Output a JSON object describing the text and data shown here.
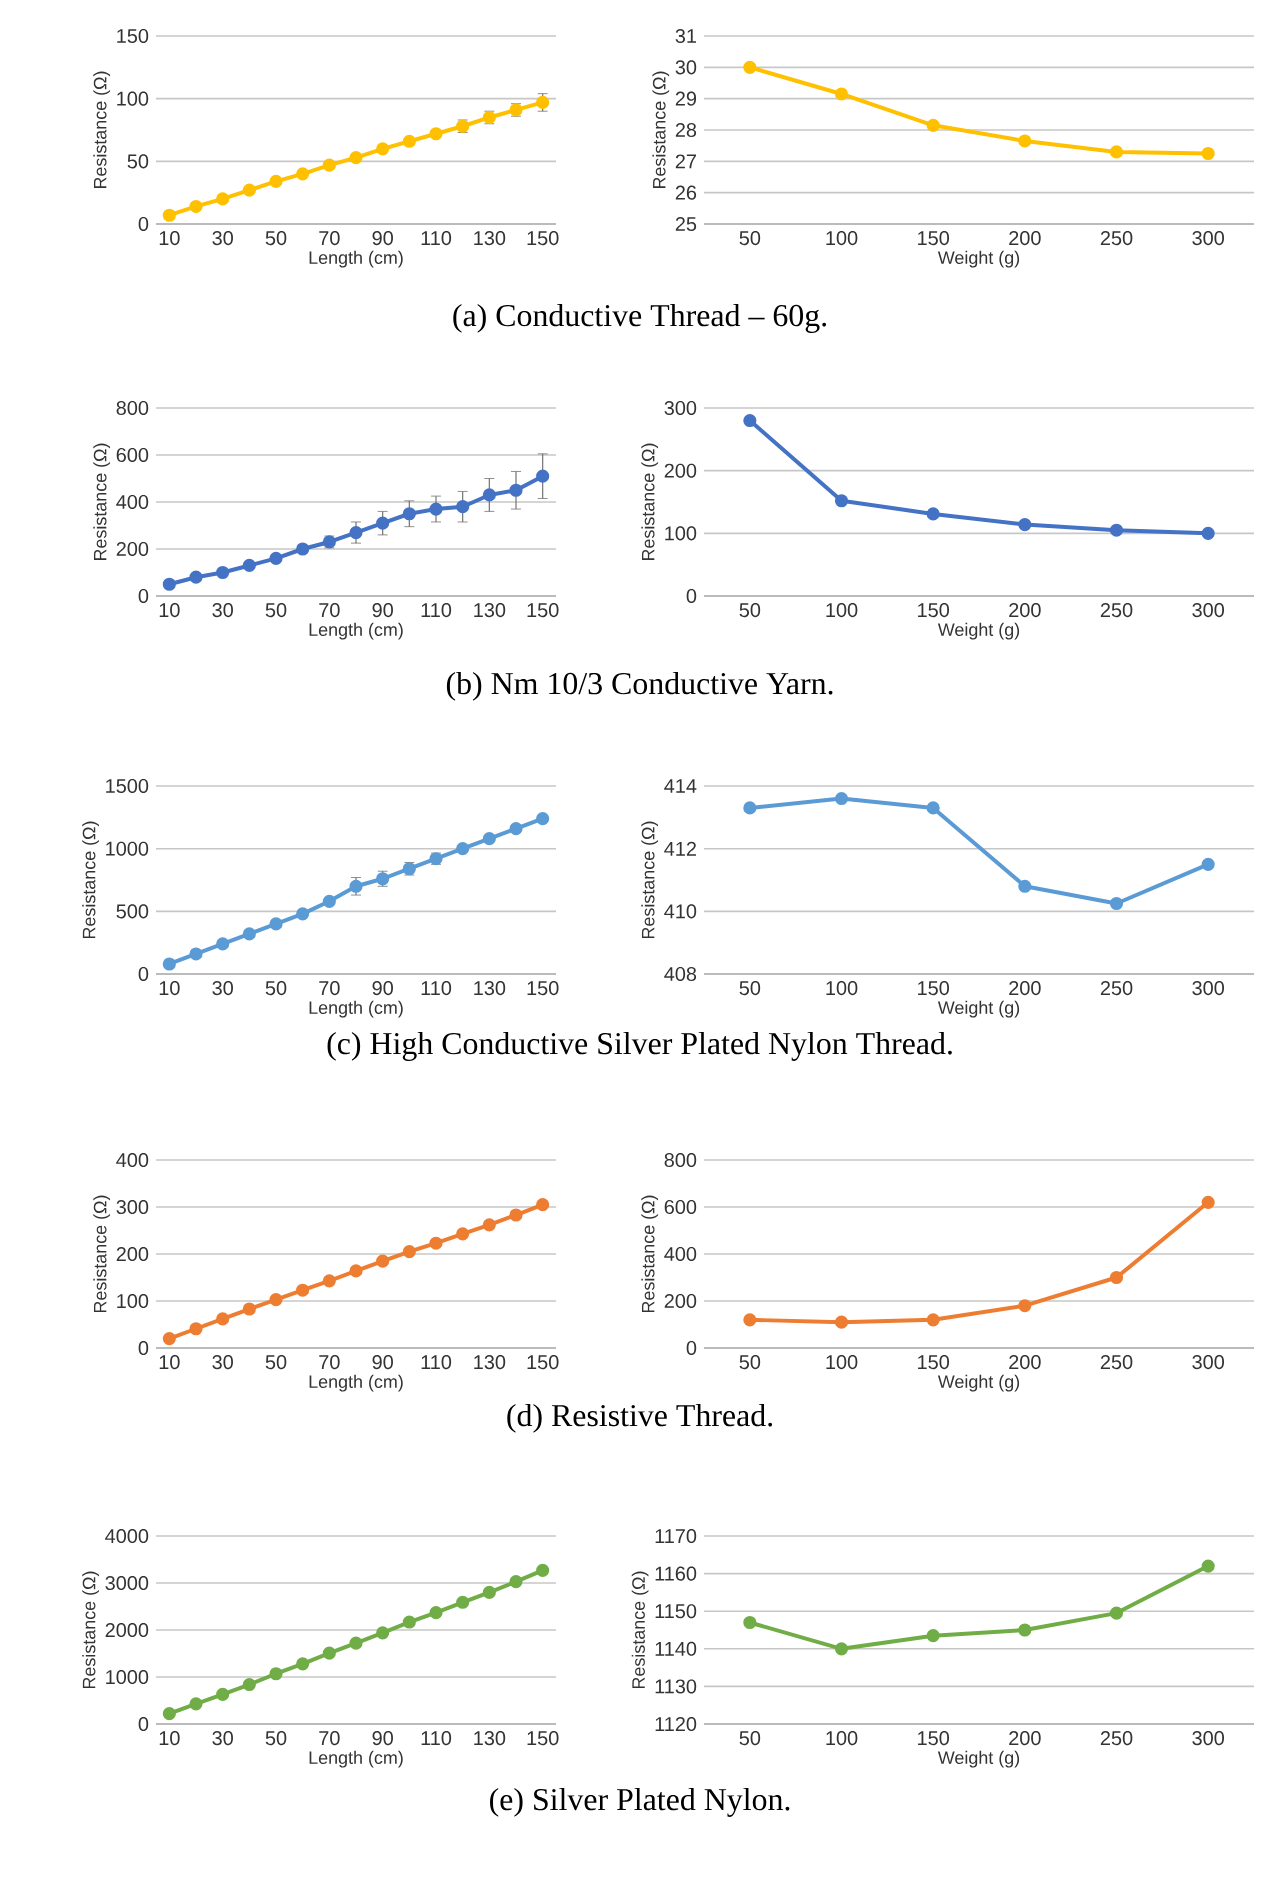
{
  "chart_data": [
    {
      "type": "line",
      "categories": [
        "10",
        null,
        "30",
        null,
        "50",
        null,
        "70",
        null,
        "90",
        null,
        "110",
        null,
        "130",
        null,
        "150"
      ],
      "values": [
        7,
        14,
        20,
        27,
        34,
        40,
        47,
        53,
        60,
        66,
        72,
        78,
        85,
        91,
        97
      ],
      "errors": [
        null,
        null,
        null,
        null,
        null,
        null,
        null,
        null,
        null,
        null,
        null,
        5,
        5,
        5,
        7
      ],
      "color": "#ffc000",
      "ylim": [
        0,
        150
      ],
      "yticks": [
        0,
        50,
        100,
        150
      ],
      "xlabel": "Length (cm)",
      "ylabel": "Resistance (Ω)",
      "grid": "y",
      "marker": "circle",
      "annotations": [
        "(a) Conductive Thread – 60g."
      ]
    },
    {
      "type": "line",
      "categories": [
        "50",
        "100",
        "150",
        "200",
        "250",
        "300"
      ],
      "values": [
        30.0,
        29.15,
        28.15,
        27.65,
        27.3,
        27.25
      ],
      "color": "#ffc000",
      "ylim": [
        25,
        31
      ],
      "yticks": [
        25,
        26,
        27,
        28,
        29,
        30,
        31
      ],
      "xlabel": "Weight (g)",
      "ylabel": "Resistance (Ω)",
      "grid": "y",
      "marker": "circle"
    },
    {
      "type": "line",
      "categories": [
        "10",
        null,
        "30",
        null,
        "50",
        null,
        "70",
        null,
        "90",
        null,
        "110",
        null,
        "130",
        null,
        "150"
      ],
      "values": [
        50,
        80,
        100,
        130,
        160,
        200,
        230,
        270,
        310,
        350,
        370,
        380,
        430,
        450,
        510
      ],
      "errors": [
        null,
        null,
        null,
        null,
        null,
        null,
        25,
        45,
        50,
        55,
        55,
        65,
        70,
        80,
        95
      ],
      "color": "#4472c4",
      "ylim": [
        0,
        800
      ],
      "yticks": [
        0,
        200,
        400,
        600,
        800
      ],
      "xlabel": "Length (cm)",
      "ylabel": "Resistance (Ω)",
      "grid": "y",
      "marker": "circle",
      "annotations": [
        "(b) Nm 10/3 Conductive Yarn."
      ]
    },
    {
      "type": "line",
      "categories": [
        "50",
        "100",
        "150",
        "200",
        "250",
        "300"
      ],
      "values": [
        280,
        152,
        131,
        114,
        105,
        100
      ],
      "color": "#4472c4",
      "ylim": [
        0,
        300
      ],
      "yticks": [
        0,
        100,
        200,
        300
      ],
      "xlabel": "Weight (g)",
      "ylabel": "Resistance (Ω)",
      "grid": "y",
      "marker": "circle"
    },
    {
      "type": "line",
      "categories": [
        "10",
        null,
        "30",
        null,
        "50",
        null,
        "70",
        null,
        "90",
        null,
        "110",
        null,
        "130",
        null,
        "150"
      ],
      "values": [
        80,
        160,
        240,
        320,
        400,
        480,
        580,
        700,
        760,
        840,
        920,
        1000,
        1080,
        1160,
        1240
      ],
      "errors": [
        null,
        null,
        null,
        null,
        null,
        null,
        null,
        70,
        60,
        50,
        45,
        null,
        null,
        null,
        null
      ],
      "color": "#5b9bd5",
      "ylim": [
        0,
        1500
      ],
      "yticks": [
        0,
        500,
        1000,
        1500
      ],
      "xlabel": "Length (cm)",
      "ylabel": "Resistance (Ω)",
      "grid": "y",
      "marker": "circle",
      "annotations": [
        "(c) High Conductive Silver Plated Nylon Thread."
      ]
    },
    {
      "type": "line",
      "categories": [
        "50",
        "100",
        "150",
        "200",
        "250",
        "300"
      ],
      "values": [
        413.3,
        413.6,
        413.3,
        410.8,
        410.25,
        411.5
      ],
      "color": "#5b9bd5",
      "ylim": [
        408,
        414
      ],
      "yticks": [
        408,
        410,
        412,
        414
      ],
      "xlabel": "Weight (g)",
      "ylabel": "Resistance (Ω)",
      "grid": "y",
      "marker": "circle"
    },
    {
      "type": "line",
      "categories": [
        "10",
        null,
        "30",
        null,
        "50",
        null,
        "70",
        null,
        "90",
        null,
        "110",
        null,
        "130",
        null,
        "150"
      ],
      "values": [
        20,
        41,
        62,
        83,
        103,
        123,
        143,
        164,
        185,
        205,
        223,
        243,
        262,
        283,
        305
      ],
      "color": "#ed7d31",
      "ylim": [
        0,
        400
      ],
      "yticks": [
        0,
        100,
        200,
        300,
        400
      ],
      "xlabel": "Length (cm)",
      "ylabel": "Resistance (Ω)",
      "grid": "y",
      "marker": "circle",
      "annotations": [
        "(d) Resistive Thread."
      ]
    },
    {
      "type": "line",
      "categories": [
        "50",
        "100",
        "150",
        "200",
        "250",
        "300"
      ],
      "values": [
        120,
        110,
        120,
        180,
        300,
        620
      ],
      "color": "#ed7d31",
      "ylim": [
        0,
        800
      ],
      "yticks": [
        0,
        200,
        400,
        600,
        800
      ],
      "xlabel": "Weight (g)",
      "ylabel": "Resistance (Ω)",
      "grid": "y",
      "marker": "circle"
    },
    {
      "type": "line",
      "categories": [
        "10",
        null,
        "30",
        null,
        "50",
        null,
        "70",
        null,
        "90",
        null,
        "110",
        null,
        "130",
        null,
        "150"
      ],
      "values": [
        220,
        430,
        630,
        840,
        1070,
        1280,
        1510,
        1720,
        1940,
        2170,
        2370,
        2590,
        2800,
        3030,
        3270
      ],
      "color": "#70ad47",
      "ylim": [
        0,
        4000
      ],
      "yticks": [
        0,
        1000,
        2000,
        3000,
        4000
      ],
      "xlabel": "Length (cm)",
      "ylabel": "Resistance (Ω)",
      "grid": "y",
      "marker": "circle",
      "annotations": [
        "(e) Silver Plated Nylon."
      ]
    },
    {
      "type": "line",
      "categories": [
        "50",
        "100",
        "150",
        "200",
        "250",
        "300"
      ],
      "values": [
        1147,
        1140,
        1143.5,
        1145,
        1149.5,
        1162
      ],
      "color": "#70ad47",
      "ylim": [
        1120,
        1170
      ],
      "yticks": [
        1120,
        1130,
        1140,
        1150,
        1160,
        1170
      ],
      "xlabel": "Weight (g)",
      "ylabel": "Resistance (Ω)",
      "grid": "y",
      "marker": "circle"
    }
  ]
}
